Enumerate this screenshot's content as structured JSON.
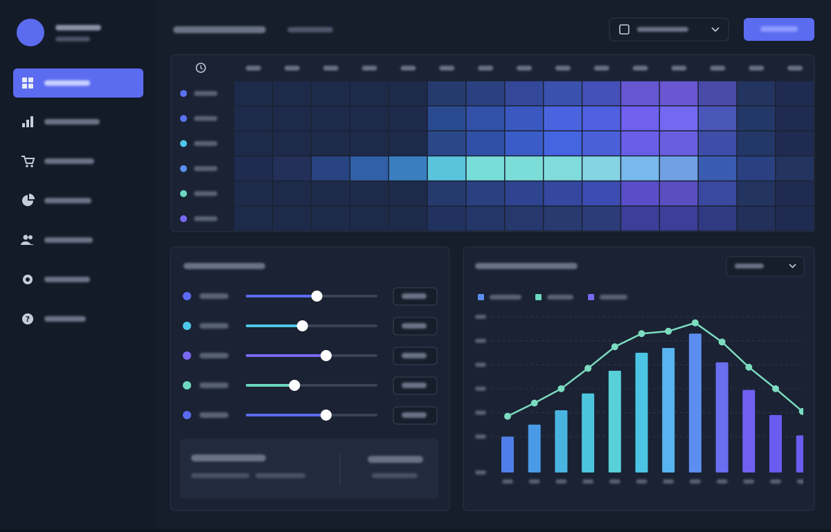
{
  "heatmap": {
    "row_colors": [
      "#5b72f0",
      "#5b72f0",
      "#4ec8ea",
      "#5b8ef0",
      "#6cd8c0",
      "#7a68f0"
    ],
    "cells": [
      [
        "#1e2a4a",
        "#1e2a4a",
        "#1e2a4a",
        "#1e2a4a",
        "#1e2a4a",
        "#263a6e",
        "#2b4080",
        "#34489a",
        "#3a52ae",
        "#4550b8",
        "#6656d0",
        "#6a56d0",
        "#4a4aa8",
        "#243460",
        "#1f2b50"
      ],
      [
        "#1e2a4a",
        "#1e2a4a",
        "#1e2a4a",
        "#1e2a4a",
        "#1e2a4a",
        "#2a4a90",
        "#3350a8",
        "#3a58c0",
        "#4a64e0",
        "#5060e0",
        "#7060f0",
        "#7468f0",
        "#4a55b8",
        "#243868",
        "#1f2b50"
      ],
      [
        "#1e2a4a",
        "#1e2a4a",
        "#1e2a4a",
        "#1e2a4a",
        "#1e2a4a",
        "#2a4888",
        "#3050a8",
        "#3a5cc8",
        "#4464e0",
        "#4a60d8",
        "#6a5ee8",
        "#6a5ee0",
        "#3e4ea8",
        "#243868",
        "#1f2b50"
      ],
      [
        "#1f2b50",
        "#22305a",
        "#284380",
        "#3060a8",
        "#3a7ec0",
        "#5ac4dc",
        "#78dcd8",
        "#7cdcd8",
        "#80dcdc",
        "#84d4e4",
        "#78b8ec",
        "#70a0e4",
        "#3a5cb0",
        "#2a4080",
        "#243460"
      ],
      [
        "#1e2a4a",
        "#1e2a4a",
        "#1e2a4a",
        "#1e2a4a",
        "#1e2a4a",
        "#263a70",
        "#2a4080",
        "#2e4490",
        "#3448a0",
        "#3c4cb0",
        "#5a4ec8",
        "#5a4ec0",
        "#3a48a0",
        "#243460",
        "#1f2b50"
      ],
      [
        "#1e2a4a",
        "#1e2a4a",
        "#1e2a4a",
        "#1e2a4a",
        "#1e2a4a",
        "#223260",
        "#243668",
        "#26386c",
        "#283a70",
        "#2c3c78",
        "#3c3e98",
        "#3c3e98",
        "#303a80",
        "#22305a",
        "#1f2b50"
      ]
    ]
  },
  "sliders": [
    {
      "color": "#5b6cf0",
      "value": 54
    },
    {
      "color": "#4ec8ea",
      "value": 43
    },
    {
      "color": "#7a68f0",
      "value": 61
    },
    {
      "color": "#6cd8c0",
      "value": 37
    },
    {
      "color": "#5b6cf0",
      "value": 61
    }
  ],
  "chart_data": {
    "type": "bar_line",
    "ylim": [
      0,
      130
    ],
    "yticks": [
      0,
      30,
      50,
      70,
      90,
      110,
      130
    ],
    "grid": true,
    "legend_colors": [
      "#5b8ef0",
      "#6cd8c0",
      "#7a68f0"
    ],
    "bars": {
      "colors": [
        "#4f7ee8",
        "#4a9ae6",
        "#4ab4e0",
        "#4cc4dc",
        "#58d0d8",
        "#4cc4e4",
        "#58b4ee",
        "#5c8ef0",
        "#6a6ef0",
        "#7060f0",
        "#6a5cf0",
        "#6a5cf0"
      ],
      "values": [
        30,
        40,
        52,
        66,
        85,
        100,
        104,
        116,
        92,
        69,
        48,
        31
      ]
    },
    "line": {
      "color": "#7cdcc0",
      "values": [
        47,
        58,
        70,
        87,
        105,
        116,
        118,
        125,
        109,
        88,
        70,
        51
      ]
    }
  }
}
